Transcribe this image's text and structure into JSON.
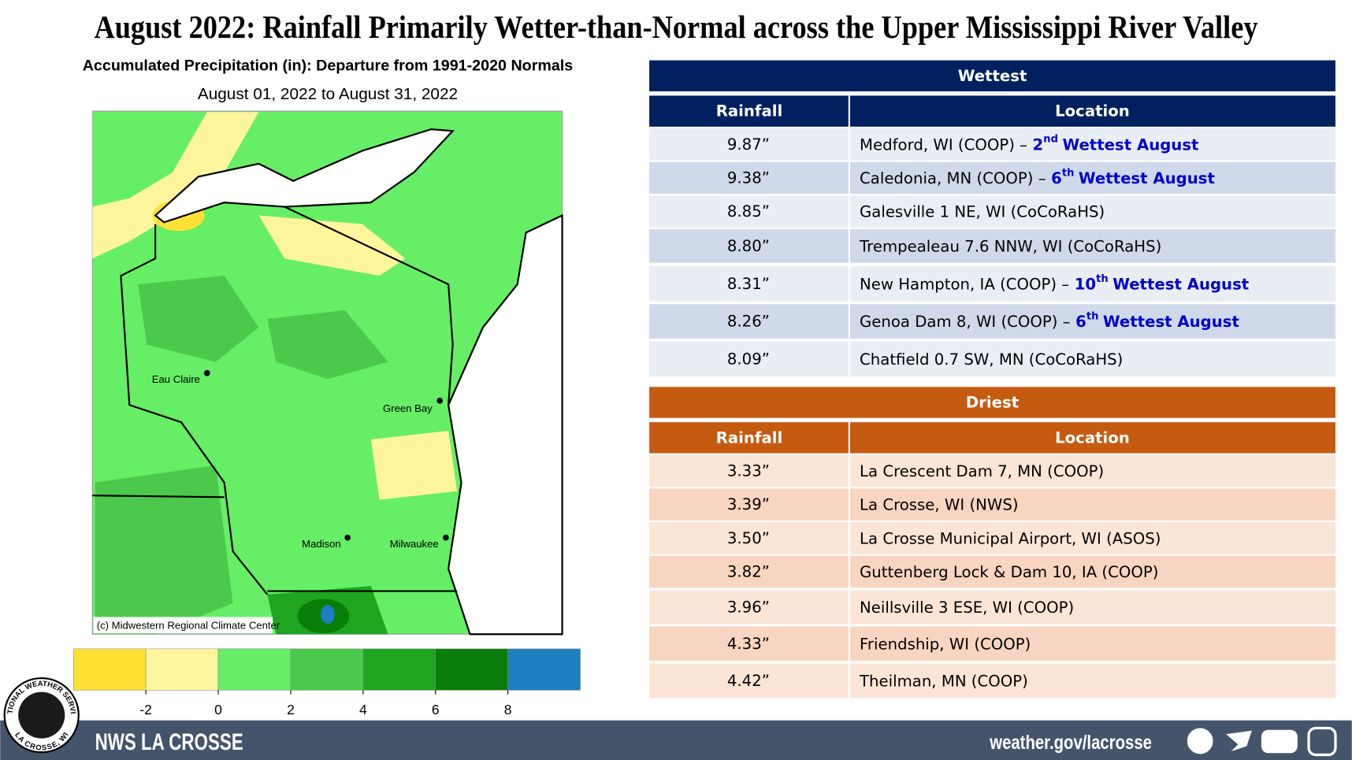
{
  "title": "August 2022:  Rainfall Primarily Wetter-than-Normal across the Upper Mississippi River Valley",
  "map": {
    "heading": "Accumulated Precipitation (in): Departure from 1991-2020 Normals",
    "dates": "August 01, 2022 to August 31, 2022",
    "cities": [
      "Eau Claire",
      "Green Bay",
      "Madison",
      "Milwaukee"
    ],
    "credit": "(c) Midwestern Regional Climate Center",
    "legend": {
      "ticks": [
        -2,
        0,
        2,
        4,
        6,
        8
      ],
      "colors": [
        "#ffe135",
        "#fff59d",
        "#66ee66",
        "#4cc94c",
        "#1fa51f",
        "#087e08",
        "#1e7ec0"
      ]
    }
  },
  "wettest": {
    "title": "Wettest",
    "headers": [
      "Rainfall",
      "Location"
    ],
    "rows": [
      {
        "rainfall": "9.87”",
        "location": "Medford, WI (COOP) –",
        "rank": "2",
        "suffix": "nd",
        "note": "Wettest August"
      },
      {
        "rainfall": "9.38”",
        "location": "Caledonia, MN (COOP) –",
        "rank": "6",
        "suffix": "th",
        "note": "Wettest August"
      },
      {
        "rainfall": "8.85”",
        "location": "Galesville 1 NE, WI (CoCoRaHS)"
      },
      {
        "rainfall": "8.80”",
        "location": "Trempealeau 7.6 NNW, WI (CoCoRaHS)"
      },
      {
        "rainfall": "8.31”",
        "location": "New Hampton, IA (COOP) –",
        "rank": "10",
        "suffix": "th",
        "note": "Wettest August"
      },
      {
        "rainfall": "8.26”",
        "location": "Genoa Dam 8, WI (COOP) –",
        "rank": "6",
        "suffix": "th",
        "note": "Wettest August"
      },
      {
        "rainfall": "8.09”",
        "location": "Chatfield 0.7 SW, MN (CoCoRaHS)"
      }
    ]
  },
  "driest": {
    "title": "Driest",
    "headers": [
      "Rainfall",
      "Location"
    ],
    "rows": [
      {
        "rainfall": "3.33”",
        "location": "La Crescent Dam 7, MN (COOP)"
      },
      {
        "rainfall": "3.39”",
        "location": "La Crosse, WI (NWS)"
      },
      {
        "rainfall": "3.50”",
        "location": "La Crosse Municipal Airport, WI (ASOS)"
      },
      {
        "rainfall": "3.82”",
        "location": "Guttenberg Lock & Dam 10, IA (COOP)"
      },
      {
        "rainfall": "3.96”",
        "location": "Neillsville 3 ESE, WI (COOP)"
      },
      {
        "rainfall": "4.33”",
        "location": "Friendship, WI (COOP)"
      },
      {
        "rainfall": "4.42”",
        "location": "Theilman, MN (COOP)"
      }
    ]
  },
  "footer": {
    "office": "NWS LA CROSSE",
    "url": "weather.gov/lacrosse"
  },
  "logo": {
    "top": "NATIONAL WEATHER SERVICE",
    "bottom": "LA CROSSE, WI"
  }
}
